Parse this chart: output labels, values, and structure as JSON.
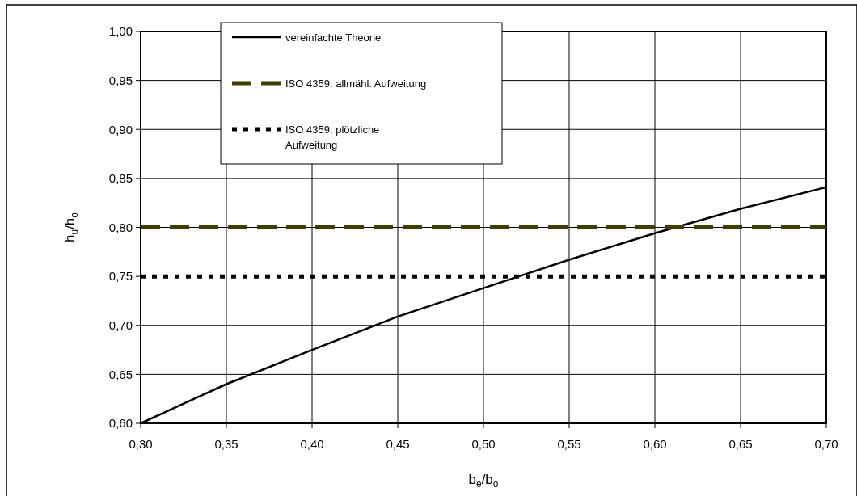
{
  "chart_data": {
    "type": "line",
    "xlabel": "b$_{e}$/b$_{o}$",
    "ylabel": "h$_{u}$/h$_{o}$",
    "xlim": [
      0.3,
      0.7
    ],
    "ylim": [
      0.6,
      1.0
    ],
    "xticks": [
      {
        "value": 0.3,
        "label": "0,30"
      },
      {
        "value": 0.35,
        "label": "0,35"
      },
      {
        "value": 0.4,
        "label": "0,40"
      },
      {
        "value": 0.45,
        "label": "0,45"
      },
      {
        "value": 0.5,
        "label": "0,50"
      },
      {
        "value": 0.55,
        "label": "0,55"
      },
      {
        "value": 0.6,
        "label": "0,60"
      },
      {
        "value": 0.65,
        "label": "0,65"
      },
      {
        "value": 0.7,
        "label": "0,70"
      }
    ],
    "yticks": [
      {
        "value": 0.6,
        "label": "0,60"
      },
      {
        "value": 0.65,
        "label": "0,65"
      },
      {
        "value": 0.7,
        "label": "0,70"
      },
      {
        "value": 0.75,
        "label": "0,75"
      },
      {
        "value": 0.8,
        "label": "0,80"
      },
      {
        "value": 0.85,
        "label": "0,85"
      },
      {
        "value": 0.9,
        "label": "0,90"
      },
      {
        "value": 0.95,
        "label": "0,95"
      },
      {
        "value": 1.0,
        "label": "1,00"
      }
    ],
    "grid": true,
    "legend": "top",
    "series": [
      {
        "name": "vereinfachte Theorie",
        "color": "#000000",
        "line_style": "solid",
        "x": [
          0.3,
          0.35,
          0.4,
          0.45,
          0.5,
          0.55,
          0.6,
          0.65,
          0.7
        ],
        "values": [
          0.6,
          0.64,
          0.675,
          0.709,
          0.738,
          0.767,
          0.794,
          0.819,
          0.841
        ]
      },
      {
        "name": "ISO 4359: allmähl. Aufweitung",
        "color": "#3f3f00",
        "line_style": "dashed",
        "x": [
          0.3,
          0.7
        ],
        "values": [
          0.8,
          0.8
        ]
      },
      {
        "name": "ISO 4359: plötzliche Aufweitung",
        "color": "#000000",
        "line_style": "dotted",
        "x": [
          0.3,
          0.7
        ],
        "values": [
          0.75,
          0.75
        ]
      }
    ]
  }
}
